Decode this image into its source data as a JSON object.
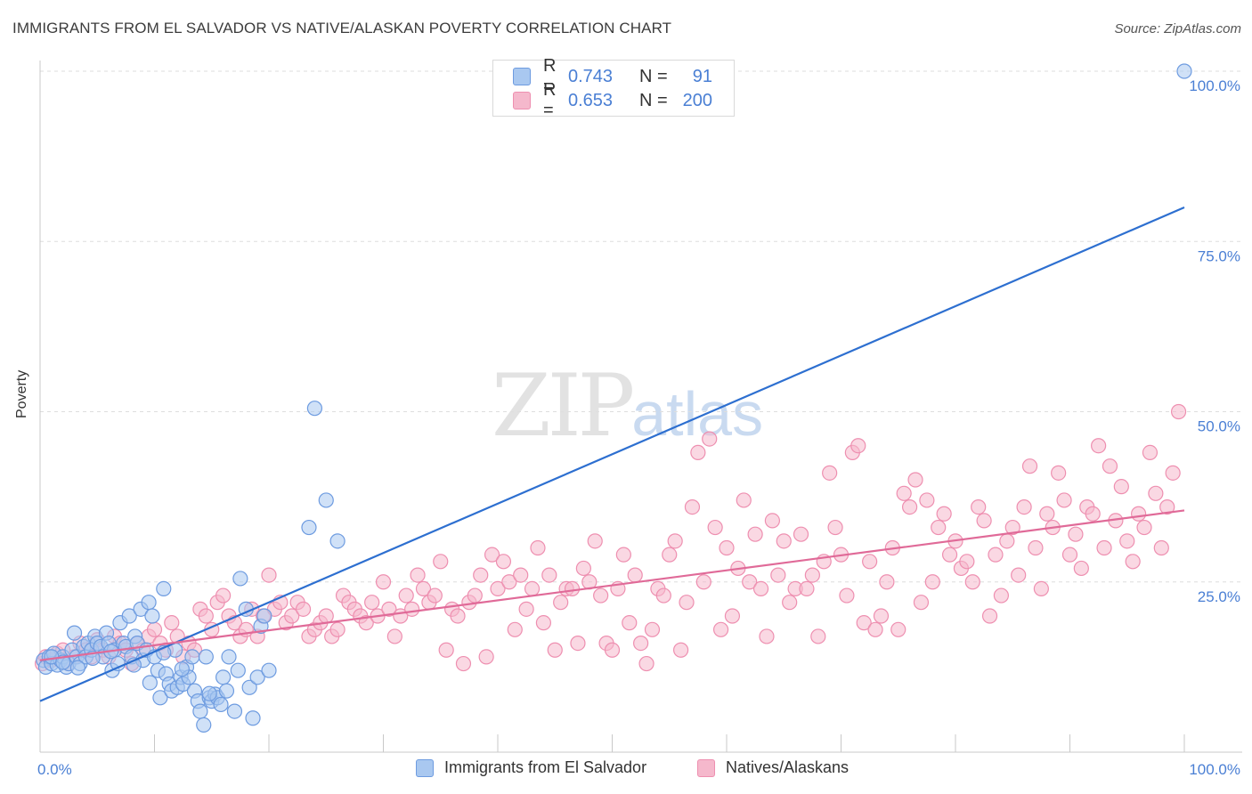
{
  "header": {
    "title": "IMMIGRANTS FROM EL SALVADOR VS NATIVE/ALASKAN POVERTY CORRELATION CHART",
    "source": "Source: ZipAtlas.com"
  },
  "watermark": {
    "zip": "ZIP",
    "atlas": "atlas"
  },
  "legend": {
    "blue": {
      "r_label": "R =",
      "r_value": "0.743",
      "n_label": "N =",
      "n_value": "91"
    },
    "pink": {
      "r_label": "R =",
      "r_value": "0.653",
      "n_label": "N =",
      "n_value": "200"
    }
  },
  "bottom_legend": {
    "blue_label": "Immigrants from El Salvador",
    "pink_label": "Natives/Alaskans"
  },
  "colors": {
    "blue_fill": "#a9c8f0",
    "blue_stroke": "#6d9be0",
    "blue_line": "#2d6fd0",
    "pink_fill": "#f5b8cc",
    "pink_stroke": "#ee8fb0",
    "pink_line": "#e06a98",
    "tick_text": "#4a7fd4",
    "grid": "#dedede"
  },
  "chart_data": {
    "type": "scatter",
    "title": "IMMIGRANTS FROM EL SALVADOR VS NATIVE/ALASKAN POVERTY CORRELATION CHART",
    "xlabel": "",
    "ylabel": "Poverty",
    "xlim": [
      0,
      100
    ],
    "ylim": [
      0,
      100
    ],
    "x_tick_labels": [
      "0.0%",
      "100.0%"
    ],
    "y_ticks": [
      25,
      50,
      75,
      100
    ],
    "y_tick_labels": [
      "25.0%",
      "50.0%",
      "75.0%",
      "100.0%"
    ],
    "grid": true,
    "legend_position": "top-center",
    "series": [
      {
        "name": "Immigrants from El Salvador",
        "color": "#a9c8f0",
        "trend": {
          "x": [
            0,
            100
          ],
          "y": [
            7.5,
            80
          ]
        },
        "points": [
          [
            0.3,
            13.5
          ],
          [
            0.5,
            12.5
          ],
          [
            0.8,
            14
          ],
          [
            1,
            13
          ],
          [
            1.2,
            14.5
          ],
          [
            1.5,
            12.8
          ],
          [
            1.8,
            13.5
          ],
          [
            2,
            14
          ],
          [
            2.3,
            12.5
          ],
          [
            2.5,
            13
          ],
          [
            2.8,
            15
          ],
          [
            3,
            17.5
          ],
          [
            3.2,
            14
          ],
          [
            3.5,
            13
          ],
          [
            3.8,
            15.5
          ],
          [
            4,
            14
          ],
          [
            4.2,
            16
          ],
          [
            4.5,
            15
          ],
          [
            4.8,
            17
          ],
          [
            5,
            16
          ],
          [
            5.3,
            15.5
          ],
          [
            5.5,
            14
          ],
          [
            5.8,
            17.5
          ],
          [
            6,
            16
          ],
          [
            6.3,
            12
          ],
          [
            6.5,
            15
          ],
          [
            6.8,
            13
          ],
          [
            7,
            19
          ],
          [
            7.3,
            16
          ],
          [
            7.5,
            15.5
          ],
          [
            7.8,
            20
          ],
          [
            8,
            14
          ],
          [
            8.3,
            17
          ],
          [
            8.5,
            16
          ],
          [
            8.8,
            21
          ],
          [
            9,
            13.5
          ],
          [
            9.3,
            15
          ],
          [
            9.5,
            22
          ],
          [
            9.8,
            20
          ],
          [
            10,
            14
          ],
          [
            10.3,
            12
          ],
          [
            10.5,
            8
          ],
          [
            10.8,
            24
          ],
          [
            11,
            11.5
          ],
          [
            11.3,
            10
          ],
          [
            11.5,
            9
          ],
          [
            11.8,
            15
          ],
          [
            12,
            9.5
          ],
          [
            12.3,
            11
          ],
          [
            12.5,
            10
          ],
          [
            12.8,
            12.5
          ],
          [
            13,
            11
          ],
          [
            13.3,
            14
          ],
          [
            13.5,
            9
          ],
          [
            13.8,
            7.5
          ],
          [
            14,
            6
          ],
          [
            14.3,
            4
          ],
          [
            14.5,
            14
          ],
          [
            14.8,
            8
          ],
          [
            15,
            7.5
          ],
          [
            15.3,
            8.5
          ],
          [
            15.5,
            8
          ],
          [
            15.8,
            7
          ],
          [
            16,
            11
          ],
          [
            16.3,
            9
          ],
          [
            16.5,
            14
          ],
          [
            17,
            6
          ],
          [
            17.3,
            12
          ],
          [
            17.5,
            25.5
          ],
          [
            18,
            21
          ],
          [
            18.3,
            9.5
          ],
          [
            18.6,
            5
          ],
          [
            19,
            11
          ],
          [
            19.3,
            18.5
          ],
          [
            19.6,
            20
          ],
          [
            20,
            12
          ],
          [
            23.5,
            33
          ],
          [
            24,
            50.5
          ],
          [
            25,
            37
          ],
          [
            26,
            31
          ],
          [
            1,
            14
          ],
          [
            2,
            13.2
          ],
          [
            3.3,
            12.4
          ],
          [
            4.6,
            13.8
          ],
          [
            6.2,
            14.8
          ],
          [
            8.2,
            12.8
          ],
          [
            9.6,
            10.2
          ],
          [
            10.8,
            14.6
          ],
          [
            12.4,
            12.2
          ],
          [
            14.8,
            8.6
          ],
          [
            100,
            100
          ]
        ]
      },
      {
        "name": "Natives/Alaskans",
        "color": "#f5b8cc",
        "trend": {
          "x": [
            0,
            100
          ],
          "y": [
            13.5,
            35.5
          ]
        },
        "points": [
          [
            0.2,
            13
          ],
          [
            0.5,
            14
          ],
          [
            1,
            13.5
          ],
          [
            1.5,
            14.5
          ],
          [
            2,
            15
          ],
          [
            2.5,
            13
          ],
          [
            3,
            14
          ],
          [
            3.5,
            16
          ],
          [
            4,
            15
          ],
          [
            4.5,
            14
          ],
          [
            5,
            16.5
          ],
          [
            5.5,
            15
          ],
          [
            6,
            14
          ],
          [
            6.5,
            17
          ],
          [
            7,
            16
          ],
          [
            7.5,
            15
          ],
          [
            8,
            13
          ],
          [
            8.5,
            16
          ],
          [
            9,
            15
          ],
          [
            9.5,
            17
          ],
          [
            10,
            18
          ],
          [
            10.5,
            16
          ],
          [
            11,
            15
          ],
          [
            11.5,
            19
          ],
          [
            12,
            17
          ],
          [
            12.5,
            14
          ],
          [
            13,
            16
          ],
          [
            13.5,
            15
          ],
          [
            14,
            21
          ],
          [
            14.5,
            20
          ],
          [
            15,
            18
          ],
          [
            15.5,
            22
          ],
          [
            16,
            23
          ],
          [
            16.5,
            20
          ],
          [
            17,
            19
          ],
          [
            17.5,
            17
          ],
          [
            18,
            18
          ],
          [
            18.5,
            21
          ],
          [
            19,
            17
          ],
          [
            19.5,
            20
          ],
          [
            20,
            26
          ],
          [
            20.5,
            21
          ],
          [
            21,
            22
          ],
          [
            21.5,
            19
          ],
          [
            22,
            20
          ],
          [
            22.5,
            22
          ],
          [
            23,
            21
          ],
          [
            23.5,
            17
          ],
          [
            24,
            18
          ],
          [
            24.5,
            19
          ],
          [
            25,
            20
          ],
          [
            25.5,
            17
          ],
          [
            26,
            18
          ],
          [
            26.5,
            23
          ],
          [
            27,
            22
          ],
          [
            27.5,
            21
          ],
          [
            28,
            20
          ],
          [
            28.5,
            19
          ],
          [
            29,
            22
          ],
          [
            29.5,
            20
          ],
          [
            30,
            25
          ],
          [
            30.5,
            21
          ],
          [
            31,
            17
          ],
          [
            31.5,
            20
          ],
          [
            32,
            23
          ],
          [
            32.5,
            21
          ],
          [
            33,
            26
          ],
          [
            33.5,
            24
          ],
          [
            34,
            22
          ],
          [
            34.5,
            23
          ],
          [
            35,
            28
          ],
          [
            35.5,
            15
          ],
          [
            36,
            21
          ],
          [
            36.5,
            20
          ],
          [
            37,
            13
          ],
          [
            37.5,
            22
          ],
          [
            38,
            23
          ],
          [
            38.5,
            26
          ],
          [
            39,
            14
          ],
          [
            39.5,
            29
          ],
          [
            40,
            24
          ],
          [
            40.5,
            28
          ],
          [
            41,
            25
          ],
          [
            41.5,
            18
          ],
          [
            42,
            26
          ],
          [
            42.5,
            21
          ],
          [
            43,
            24
          ],
          [
            43.5,
            30
          ],
          [
            44,
            19
          ],
          [
            44.5,
            26
          ],
          [
            45,
            15
          ],
          [
            45.5,
            22
          ],
          [
            46,
            24
          ],
          [
            46.5,
            24
          ],
          [
            47,
            16
          ],
          [
            47.5,
            27
          ],
          [
            48,
            25
          ],
          [
            48.5,
            31
          ],
          [
            49,
            23
          ],
          [
            49.5,
            16
          ],
          [
            50,
            15
          ],
          [
            50.5,
            24
          ],
          [
            51,
            29
          ],
          [
            51.5,
            19
          ],
          [
            52,
            26
          ],
          [
            52.5,
            16
          ],
          [
            53,
            13
          ],
          [
            53.5,
            18
          ],
          [
            54,
            24
          ],
          [
            54.5,
            23
          ],
          [
            55,
            29
          ],
          [
            55.5,
            31
          ],
          [
            56,
            15
          ],
          [
            56.5,
            22
          ],
          [
            57,
            36
          ],
          [
            57.5,
            44
          ],
          [
            58,
            25
          ],
          [
            58.5,
            46
          ],
          [
            59,
            33
          ],
          [
            59.5,
            18
          ],
          [
            60,
            30
          ],
          [
            60.5,
            20
          ],
          [
            61,
            27
          ],
          [
            61.5,
            37
          ],
          [
            62,
            25
          ],
          [
            62.5,
            32
          ],
          [
            63,
            24
          ],
          [
            63.5,
            17
          ],
          [
            64,
            34
          ],
          [
            64.5,
            26
          ],
          [
            65,
            31
          ],
          [
            65.5,
            22
          ],
          [
            66,
            24
          ],
          [
            66.5,
            32
          ],
          [
            67,
            24
          ],
          [
            67.5,
            26
          ],
          [
            68,
            17
          ],
          [
            68.5,
            28
          ],
          [
            69,
            41
          ],
          [
            69.5,
            33
          ],
          [
            70,
            29
          ],
          [
            70.5,
            23
          ],
          [
            71,
            44
          ],
          [
            71.5,
            45
          ],
          [
            72,
            19
          ],
          [
            72.5,
            28
          ],
          [
            73,
            18
          ],
          [
            73.5,
            20
          ],
          [
            74,
            25
          ],
          [
            74.5,
            30
          ],
          [
            75,
            18
          ],
          [
            75.5,
            38
          ],
          [
            76,
            36
          ],
          [
            76.5,
            40
          ],
          [
            77,
            22
          ],
          [
            77.5,
            37
          ],
          [
            78,
            25
          ],
          [
            78.5,
            33
          ],
          [
            79,
            35
          ],
          [
            79.5,
            29
          ],
          [
            80,
            31
          ],
          [
            80.5,
            27
          ],
          [
            81,
            28
          ],
          [
            81.5,
            25
          ],
          [
            82,
            36
          ],
          [
            82.5,
            34
          ],
          [
            83,
            20
          ],
          [
            83.5,
            29
          ],
          [
            84,
            23
          ],
          [
            84.5,
            31
          ],
          [
            85,
            33
          ],
          [
            85.5,
            26
          ],
          [
            86,
            36
          ],
          [
            86.5,
            42
          ],
          [
            87,
            30
          ],
          [
            87.5,
            24
          ],
          [
            88,
            35
          ],
          [
            88.5,
            33
          ],
          [
            89,
            41
          ],
          [
            89.5,
            37
          ],
          [
            90,
            29
          ],
          [
            90.5,
            32
          ],
          [
            91,
            27
          ],
          [
            91.5,
            36
          ],
          [
            92,
            35
          ],
          [
            92.5,
            45
          ],
          [
            93,
            30
          ],
          [
            93.5,
            42
          ],
          [
            94,
            34
          ],
          [
            94.5,
            39
          ],
          [
            95,
            31
          ],
          [
            95.5,
            28
          ],
          [
            96,
            35
          ],
          [
            96.5,
            33
          ],
          [
            97,
            44
          ],
          [
            97.5,
            38
          ],
          [
            98,
            30
          ],
          [
            98.5,
            36
          ],
          [
            99,
            41
          ],
          [
            99.5,
            50
          ]
        ]
      }
    ]
  }
}
